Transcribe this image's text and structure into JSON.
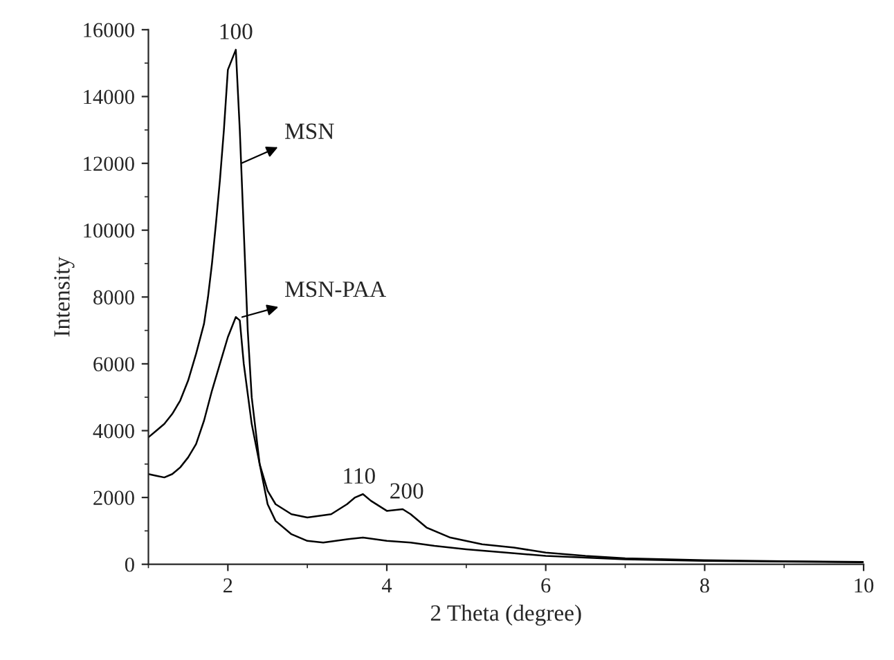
{
  "chart_data": {
    "type": "line",
    "xlabel": "2 Theta (degree)",
    "ylabel": "Intensity",
    "xlim": [
      1,
      10
    ],
    "xticks": [
      2,
      4,
      6,
      8,
      10
    ],
    "ylim": [
      0,
      16000
    ],
    "yticks": [
      0,
      2000,
      4000,
      6000,
      8000,
      10000,
      12000,
      14000,
      16000
    ],
    "grid": false,
    "legend": false,
    "series": [
      {
        "name": "MSN",
        "color": "#000000",
        "x": [
          1.0,
          1.1,
          1.2,
          1.3,
          1.4,
          1.5,
          1.6,
          1.7,
          1.75,
          1.8,
          1.85,
          1.9,
          1.95,
          2.0,
          2.05,
          2.1,
          2.15,
          2.2,
          2.25,
          2.3,
          2.4,
          2.5,
          2.6,
          2.8,
          3.0,
          3.2,
          3.5,
          3.7,
          4.0,
          4.3,
          4.6,
          5.0,
          5.5,
          6.0,
          7.0,
          8.0,
          9.0,
          10.0
        ],
        "values": [
          3800,
          4000,
          4200,
          4500,
          4900,
          5500,
          6300,
          7200,
          8000,
          9000,
          10200,
          11500,
          13000,
          14800,
          15100,
          15400,
          13000,
          10000,
          7000,
          5000,
          3000,
          1800,
          1300,
          900,
          700,
          650,
          750,
          800,
          700,
          650,
          550,
          450,
          350,
          250,
          150,
          100,
          80,
          60
        ]
      },
      {
        "name": "MSN-PAA",
        "color": "#000000",
        "x": [
          1.0,
          1.1,
          1.2,
          1.3,
          1.4,
          1.5,
          1.6,
          1.7,
          1.8,
          1.9,
          2.0,
          2.1,
          2.15,
          2.2,
          2.3,
          2.4,
          2.5,
          2.6,
          2.8,
          3.0,
          3.3,
          3.5,
          3.6,
          3.7,
          3.8,
          4.0,
          4.2,
          4.3,
          4.5,
          4.8,
          5.2,
          5.6,
          6.0,
          6.5,
          7.0,
          8.0,
          9.0,
          10.0
        ],
        "values": [
          2700,
          2650,
          2600,
          2700,
          2900,
          3200,
          3600,
          4300,
          5200,
          6000,
          6800,
          7400,
          7300,
          6000,
          4200,
          3000,
          2200,
          1800,
          1500,
          1400,
          1500,
          1800,
          2000,
          2100,
          1900,
          1600,
          1650,
          1500,
          1100,
          800,
          600,
          500,
          350,
          250,
          180,
          120,
          90,
          70
        ]
      }
    ],
    "annotations": [
      {
        "text": "100",
        "x": 2.1,
        "y": 15400
      },
      {
        "text": "110",
        "x": 3.65,
        "y": 2100
      },
      {
        "text": "200",
        "x": 4.25,
        "y": 1650
      }
    ]
  }
}
